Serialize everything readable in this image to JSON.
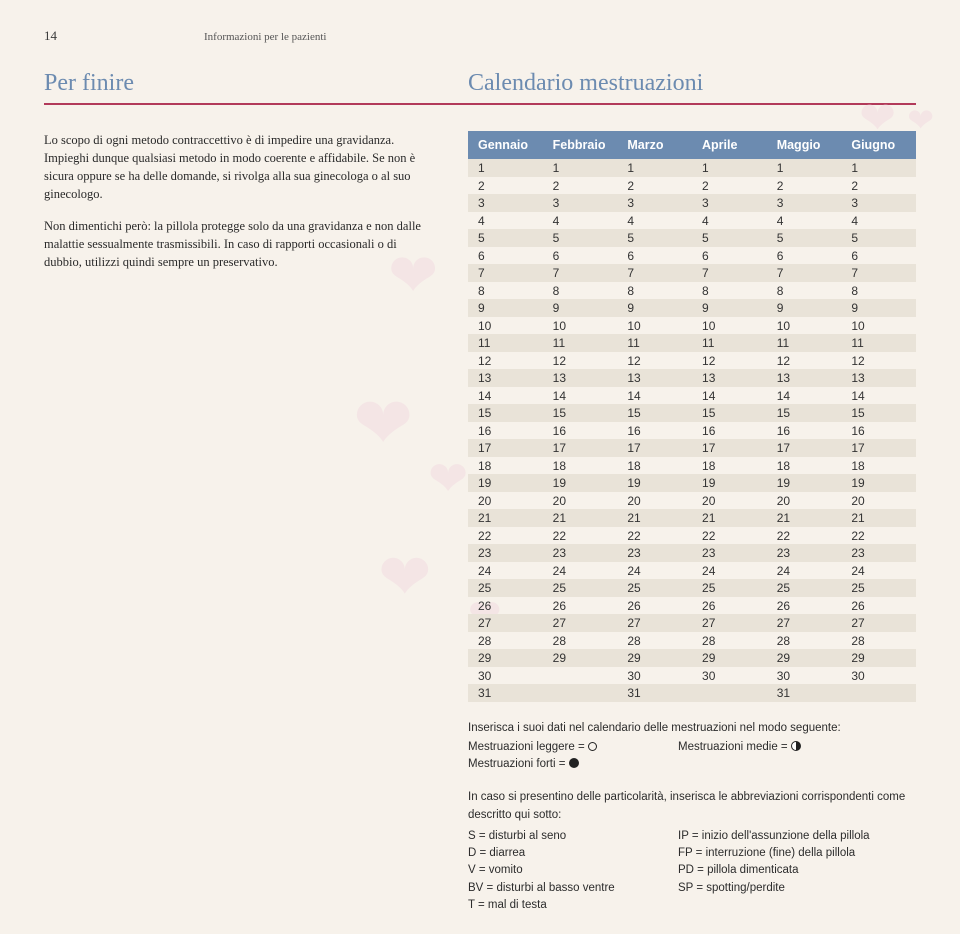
{
  "header": {
    "page_number": "14",
    "subtitle": "Informazioni per le pazienti"
  },
  "titles": {
    "left": "Per finire",
    "right": "Calendario mestruazioni"
  },
  "body": {
    "p1": "Lo scopo di ogni metodo contraccettivo è di impedire una gravidanza. Impieghi dunque qualsiasi metodo in modo coerente e affidabile. Se non è sicura oppure se ha delle domande, si rivolga alla sua ginecologa o al suo ginecologo.",
    "p2": "Non dimentichi però: la pillola protegge solo da una gravidanza e non dalle malattie sessualmente trasmissibili. In caso di rapporti occasionali o di dubbio, utilizzi quindi sempre un preservativo."
  },
  "calendar": {
    "type": "table",
    "header_bg": "#6c8bb0",
    "header_fg": "#ffffff",
    "row_odd_bg": "#e9e3d8",
    "months": [
      "Gennaio",
      "Febbraio",
      "Marzo",
      "Aprile",
      "Maggio",
      "Giugno"
    ],
    "days_in_month": [
      31,
      29,
      31,
      30,
      31,
      30
    ],
    "max_days": 31
  },
  "legend": {
    "intro": "Inserisca i suoi dati nel calendario delle mestruazioni nel modo seguente:",
    "light_label": "Mestruazioni leggere = ",
    "medium_label": "Mestruazioni medie = ",
    "heavy_label": "Mestruazioni forti = ",
    "abbrev_intro": "In caso si presentino delle particolarità, inserisca le abbreviazioni corrispondenti come descritto qui sotto:",
    "abbrevs_left": [
      "S = disturbi al seno",
      "D = diarrea",
      "V = vomito",
      "BV = disturbi al basso ventre",
      "T = mal di testa"
    ],
    "abbrevs_right": [
      "IP = inizio dell'assunzione della pillola",
      "FP = interruzione (fine) della pillola",
      "PD = pillola dimenticata",
      "SP = spotting/perdite"
    ]
  },
  "colors": {
    "background": "#f7f2eb",
    "title": "#6c8bb0",
    "rule": "#b23a5a",
    "heart": "#f3dfe3"
  }
}
